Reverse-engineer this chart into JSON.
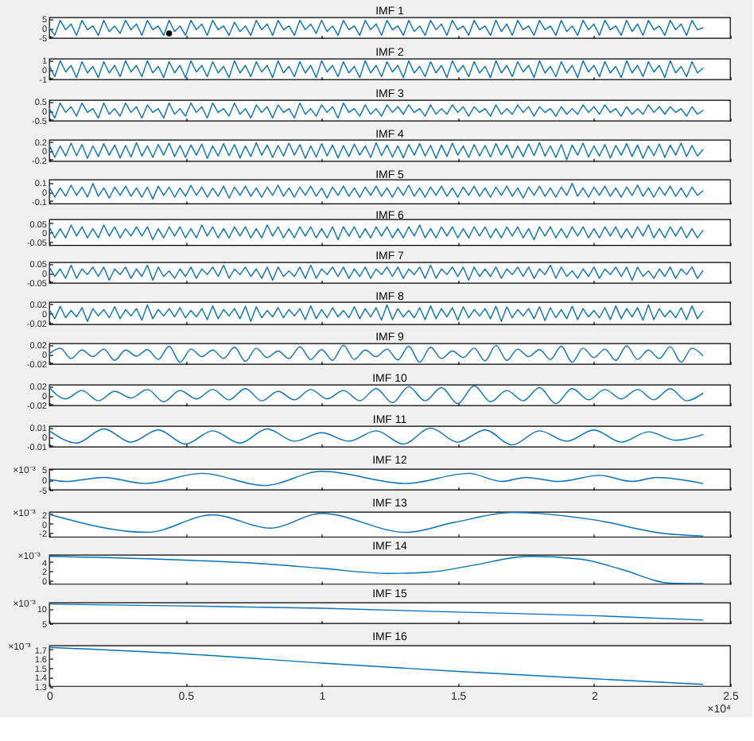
{
  "chart_data": [
    {
      "type": "line",
      "title": "IMF 1",
      "tick_labels": "y",
      "xlim": [
        0,
        2.5
      ],
      "xticks": [
        0,
        0.5,
        1,
        1.5,
        2,
        2.5
      ],
      "ylim": [
        -5.5,
        5.5
      ],
      "yticks": [
        -5,
        0,
        5
      ],
      "x": [
        0,
        0.02,
        0.04,
        0.06,
        0.08,
        0.1,
        0.12,
        0.14,
        0.16,
        0.18,
        0.2,
        0.22,
        0.24,
        0.26,
        0.28,
        0.3,
        0.32,
        0.34,
        0.36,
        0.38,
        0.4,
        0.42,
        0.44,
        0.46,
        0.48,
        0.5,
        0.52,
        0.54,
        0.56,
        0.58,
        0.6,
        0.62,
        0.64,
        0.66,
        0.68,
        0.7,
        0.72,
        0.74,
        0.76,
        0.78,
        0.8,
        0.82,
        0.84,
        0.86,
        0.88,
        0.9,
        0.92,
        0.94,
        0.96,
        0.98,
        1,
        1.02,
        1.04,
        1.06,
        1.08,
        1.1,
        1.12,
        1.14,
        1.16,
        1.18,
        1.2,
        1.22,
        1.24,
        1.26,
        1.28,
        1.3,
        1.32,
        1.34,
        1.36,
        1.38,
        1.4,
        1.42,
        1.44,
        1.46,
        1.48,
        1.5,
        1.52,
        1.54,
        1.56,
        1.58,
        1.6,
        1.62,
        1.64,
        1.66,
        1.68,
        1.7,
        1.72,
        1.74,
        1.76,
        1.78,
        1.8,
        1.82,
        1.84,
        1.86,
        1.88,
        1.9,
        1.92,
        1.94,
        1.96,
        1.98,
        2,
        2.02,
        2.04,
        2.06,
        2.08,
        2.1,
        2.12,
        2.14,
        2.16,
        2.18,
        2.2,
        2.22,
        2.24,
        2.26,
        2.28,
        2.3,
        2.32,
        2.34,
        2.36,
        2.38,
        2.4
      ],
      "series": [
        {
          "color": "#0072bd",
          "values": [
            0,
            -4,
            4,
            -1,
            2,
            -4,
            4,
            -1,
            1,
            -4,
            4,
            -2,
            1,
            -3,
            4,
            -1,
            2,
            -4,
            4,
            -1,
            1,
            -4,
            4,
            -2,
            1,
            -4,
            4,
            -1,
            2,
            -4,
            4,
            -1,
            1,
            -4,
            3,
            -2,
            1,
            -4,
            4,
            -1,
            2,
            -4,
            4,
            -1,
            1,
            -4,
            4,
            -1,
            2,
            -3,
            4,
            -2,
            1,
            -4,
            4,
            -1,
            1,
            -4,
            4,
            -1,
            2,
            -4,
            4,
            -1,
            1,
            -4,
            4,
            -2,
            1,
            -4,
            4,
            -1,
            2,
            -4,
            4,
            -1,
            1,
            -4,
            4,
            -1,
            1,
            -4,
            4,
            -2,
            2,
            -4,
            4,
            -1,
            1,
            -4,
            4,
            -1,
            1,
            -4,
            4,
            -2,
            1,
            -4,
            4,
            -1,
            2,
            -4,
            4,
            -1,
            1,
            -4,
            4,
            -2,
            2,
            -4,
            4,
            -1,
            1,
            -4,
            4,
            -1,
            2,
            -4,
            4,
            -1,
            0
          ]
        },
        {
          "type": "scatter",
          "color": "#000000",
          "x": [
            0.44
          ],
          "values": [
            -3
          ]
        }
      ]
    },
    {
      "type": "line",
      "title": "IMF 2",
      "tick_labels": "y",
      "xlim": [
        0,
        2.5
      ],
      "xticks": [
        0,
        0.5,
        1,
        1.5,
        2,
        2.5
      ],
      "ylim": [
        -1.1,
        1.1
      ],
      "yticks": [
        -1,
        0,
        1
      ],
      "color": "#0072bd",
      "x": [
        0,
        0.02,
        0.04,
        0.06,
        0.08,
        0.1,
        0.12,
        0.14,
        0.16,
        0.18,
        0.2,
        0.22,
        0.24,
        0.26,
        0.28,
        0.3,
        0.32,
        0.34,
        0.36,
        0.38,
        0.4,
        0.42,
        0.44,
        0.46,
        0.48,
        0.5,
        0.52,
        0.54,
        0.56,
        0.58,
        0.6,
        0.62,
        0.64,
        0.66,
        0.68,
        0.7,
        0.72,
        0.74,
        0.76,
        0.78,
        0.8,
        0.82,
        0.84,
        0.86,
        0.88,
        0.9,
        0.92,
        0.94,
        0.96,
        0.98,
        1,
        1.02,
        1.04,
        1.06,
        1.08,
        1.1,
        1.12,
        1.14,
        1.16,
        1.18,
        1.2,
        1.22,
        1.24,
        1.26,
        1.28,
        1.3,
        1.32,
        1.34,
        1.36,
        1.38,
        1.4,
        1.42,
        1.44,
        1.46,
        1.48,
        1.5,
        1.52,
        1.54,
        1.56,
        1.58,
        1.6,
        1.62,
        1.64,
        1.66,
        1.68,
        1.7,
        1.72,
        1.74,
        1.76,
        1.78,
        1.8,
        1.82,
        1.84,
        1.86,
        1.88,
        1.9,
        1.92,
        1.94,
        1.96,
        1.98,
        2,
        2.02,
        2.04,
        2.06,
        2.08,
        2.1,
        2.12,
        2.14,
        2.16,
        2.18,
        2.2,
        2.22,
        2.24,
        2.26,
        2.28,
        2.3,
        2.32,
        2.34,
        2.36,
        2.38,
        2.4
      ],
      "values": [
        0.4,
        -0.8,
        0.9,
        -0.3,
        0.4,
        -0.9,
        0.8,
        -0.4,
        0.3,
        -0.9,
        0.8,
        -0.4,
        0.4,
        -0.8,
        0.9,
        -0.3,
        0.4,
        -0.8,
        0.9,
        -0.4,
        0.3,
        -0.9,
        0.8,
        -0.4,
        0.4,
        -0.9,
        0.9,
        -0.3,
        0.4,
        -0.8,
        0.8,
        -0.4,
        0.3,
        -0.9,
        0.9,
        -0.4,
        0.4,
        -0.8,
        0.8,
        -0.3,
        0.4,
        -0.9,
        0.9,
        -0.4,
        0.3,
        -0.8,
        0.8,
        -0.4,
        0.4,
        -0.9,
        0.9,
        -0.3,
        0.4,
        -0.8,
        0.8,
        -0.4,
        0.3,
        -0.9,
        0.9,
        -0.4,
        0.4,
        -0.8,
        0.8,
        -0.3,
        0.4,
        -0.9,
        0.9,
        -0.4,
        0.3,
        -0.8,
        0.8,
        -0.4,
        0.4,
        -0.9,
        0.9,
        -0.3,
        0.4,
        -0.8,
        0.8,
        -0.4,
        0.3,
        -0.9,
        0.9,
        -0.4,
        0.4,
        -0.8,
        0.8,
        -0.3,
        0.4,
        -0.9,
        0.9,
        -0.4,
        0.3,
        -0.8,
        0.8,
        -0.4,
        0.4,
        -0.9,
        0.9,
        -0.3,
        0.4,
        -0.8,
        0.8,
        -0.4,
        0.3,
        -0.9,
        0.9,
        -0.4,
        0.4,
        -0.8,
        0.8,
        -0.3,
        0.4,
        -0.9,
        0.9,
        -0.4,
        0.3,
        -0.8,
        0.8,
        -0.4,
        0.1
      ]
    },
    {
      "type": "line",
      "title": "IMF 3",
      "tick_labels": "y",
      "xlim": [
        0,
        2.5
      ],
      "xticks": [
        0,
        0.5,
        1,
        1.5,
        2,
        2.5
      ],
      "ylim": [
        -0.55,
        0.55
      ],
      "yticks": [
        -0.5,
        0,
        0.5
      ],
      "color": "#0072bd",
      "x": [
        0,
        0.02,
        0.04,
        0.06,
        0.08,
        0.1,
        0.12,
        0.14,
        0.16,
        0.18,
        0.2,
        0.22,
        0.24,
        0.26,
        0.28,
        0.3,
        0.32,
        0.34,
        0.36,
        0.38,
        0.4,
        0.42,
        0.44,
        0.46,
        0.48,
        0.5,
        0.52,
        0.54,
        0.56,
        0.58,
        0.6,
        0.62,
        0.64,
        0.66,
        0.68,
        0.7,
        0.72,
        0.74,
        0.76,
        0.78,
        0.8,
        0.82,
        0.84,
        0.86,
        0.88,
        0.9,
        0.92,
        0.94,
        0.96,
        0.98,
        1,
        1.02,
        1.04,
        1.06,
        1.08,
        1.1,
        1.12,
        1.14,
        1.16,
        1.18,
        1.2,
        1.22,
        1.24,
        1.26,
        1.28,
        1.3,
        1.32,
        1.34,
        1.36,
        1.38,
        1.4,
        1.42,
        1.44,
        1.46,
        1.48,
        1.5,
        1.52,
        1.54,
        1.56,
        1.58,
        1.6,
        1.62,
        1.64,
        1.66,
        1.68,
        1.7,
        1.72,
        1.74,
        1.76,
        1.78,
        1.8,
        1.82,
        1.84,
        1.86,
        1.88,
        1.9,
        1.92,
        1.94,
        1.96,
        1.98,
        2,
        2.02,
        2.04,
        2.06,
        2.08,
        2.1,
        2.12,
        2.14,
        2.16,
        2.18,
        2.2,
        2.22,
        2.24,
        2.26,
        2.28,
        2.3,
        2.32,
        2.34,
        2.36,
        2.38,
        2.4
      ],
      "values": [
        0.1,
        -0.4,
        0.4,
        -0.1,
        0.2,
        -0.3,
        0.4,
        -0.1,
        0.1,
        -0.4,
        0.4,
        -0.2,
        0.1,
        -0.3,
        0.4,
        -0.1,
        0.2,
        -0.4,
        0.3,
        -0.1,
        0.1,
        -0.4,
        0.4,
        -0.2,
        0.1,
        -0.3,
        0.4,
        -0.1,
        0.2,
        -0.4,
        0.4,
        -0.1,
        0.1,
        -0.3,
        0.4,
        -0.2,
        0.1,
        -0.4,
        0.3,
        -0.1,
        0.2,
        -0.4,
        0.3,
        -0.1,
        0.1,
        -0.4,
        0.4,
        -0.2,
        0.1,
        -0.3,
        0.3,
        -0.1,
        0.2,
        -0.4,
        0.4,
        -0.1,
        0.1,
        -0.3,
        0.3,
        -0.2,
        0.1,
        -0.3,
        0.3,
        -0.1,
        0.2,
        -0.2,
        0.3,
        -0.1,
        0.1,
        -0.3,
        0.3,
        -0.2,
        0.1,
        -0.2,
        0.3,
        -0.1,
        0.2,
        -0.3,
        0.2,
        -0.1,
        0.1,
        -0.3,
        0.3,
        -0.2,
        0.1,
        -0.2,
        0.3,
        -0.1,
        0.2,
        -0.3,
        0.2,
        -0.1,
        0.1,
        -0.3,
        0.2,
        -0.2,
        0.1,
        -0.2,
        0.3,
        -0.1,
        0.2,
        -0.2,
        0.3,
        -0.1,
        0.1,
        -0.3,
        0.2,
        -0.2,
        0.1,
        -0.2,
        0.3,
        -0.1,
        0.2,
        -0.2,
        0.2,
        -0.1,
        0.1,
        -0.3,
        0.2,
        -0.2,
        0
      ]
    },
    {
      "type": "line",
      "title": "IMF 4",
      "tick_labels": "y",
      "xlim": [
        0,
        2.5
      ],
      "xticks": [
        0,
        0.5,
        1,
        1.5,
        2,
        2.5
      ],
      "ylim": [
        -0.23,
        0.23
      ],
      "yticks": [
        -0.2,
        0,
        0.2
      ],
      "color": "#0072bd",
      "x": [
        0,
        0.02,
        0.04,
        0.06,
        0.08,
        0.1,
        0.12,
        0.14,
        0.16,
        0.18,
        0.2,
        0.22,
        0.24,
        0.26,
        0.28,
        0.3,
        0.32,
        0.34,
        0.36,
        0.38,
        0.4,
        0.42,
        0.44,
        0.46,
        0.48,
        0.5,
        0.52,
        0.54,
        0.56,
        0.58,
        0.6,
        0.62,
        0.64,
        0.66,
        0.68,
        0.7,
        0.72,
        0.74,
        0.76,
        0.78,
        0.8,
        0.82,
        0.84,
        0.86,
        0.88,
        0.9,
        0.92,
        0.94,
        0.96,
        0.98,
        1,
        1.02,
        1.04,
        1.06,
        1.08,
        1.1,
        1.12,
        1.14,
        1.16,
        1.18,
        1.2,
        1.22,
        1.24,
        1.26,
        1.28,
        1.3,
        1.32,
        1.34,
        1.36,
        1.38,
        1.4,
        1.42,
        1.44,
        1.46,
        1.48,
        1.5,
        1.52,
        1.54,
        1.56,
        1.58,
        1.6,
        1.62,
        1.64,
        1.66,
        1.68,
        1.7,
        1.72,
        1.74,
        1.76,
        1.78,
        1.8,
        1.82,
        1.84,
        1.86,
        1.88,
        1.9,
        1.92,
        1.94,
        1.96,
        1.98,
        2,
        2.02,
        2.04,
        2.06,
        2.08,
        2.1,
        2.12,
        2.14,
        2.16,
        2.18,
        2.2,
        2.22,
        2.24,
        2.26,
        2.28,
        2.3,
        2.32,
        2.34,
        2.36,
        2.38,
        2.4
      ],
      "values": [
        0.12,
        -0.15,
        0.1,
        -0.12,
        0.16,
        -0.11,
        0.13,
        -0.17,
        0.1,
        -0.13,
        0.15,
        -0.1,
        0.12,
        -0.16,
        0.11,
        -0.14,
        0.17,
        -0.12,
        0.1,
        -0.15,
        0.13,
        -0.1,
        0.16,
        -0.13,
        0.11,
        -0.15,
        0.12,
        -0.1,
        0.14,
        -0.17,
        0.1,
        -0.12,
        0.15,
        -0.11,
        0.13,
        -0.16,
        0.1,
        -0.13,
        0.17,
        -0.1,
        0.12,
        -0.15,
        0.11,
        -0.12,
        0.16,
        -0.1,
        0.13,
        -0.17,
        0.1,
        -0.14,
        0.15,
        -0.12,
        0.12,
        -0.16,
        0.11,
        -0.13,
        0.14,
        -0.1,
        0.1,
        -0.15,
        0.17,
        -0.11,
        0.12,
        -0.14,
        0.1,
        -0.16,
        0.13,
        -0.1,
        0.15,
        -0.12,
        0.11,
        -0.17,
        0.12,
        -0.13,
        0.16,
        -0.1,
        0.1,
        -0.15,
        0.13,
        -0.12,
        0.11,
        -0.14,
        0.15,
        -0.1,
        0.12,
        -0.16,
        0.1,
        -0.13,
        0.14,
        -0.11,
        0.17,
        -0.12,
        0.1,
        -0.15,
        0.13,
        -0.2,
        0.12,
        -0.1,
        0.16,
        -0.14,
        0.1,
        -0.12,
        0.13,
        -0.16,
        0.11,
        -0.1,
        0.15,
        -0.13,
        0.12,
        -0.17,
        0.1,
        -0.11,
        0.14,
        -0.15,
        0.12,
        -0.1,
        0.16,
        -0.13,
        0.11,
        -0.12,
        0.02
      ]
    },
    {
      "type": "line",
      "title": "IMF 5",
      "tick_labels": "y",
      "xlim": [
        0,
        2.5
      ],
      "xticks": [
        0,
        0.5,
        1,
        1.5,
        2,
        2.5
      ],
      "ylim": [
        -0.13,
        0.13
      ],
      "yticks": [
        -0.1,
        0,
        0.1
      ],
      "color": "#0072bd",
      "x": [
        0,
        0.02,
        0.04,
        0.06,
        0.08,
        0.1,
        0.12,
        0.14,
        0.16,
        0.18,
        0.2,
        0.22,
        0.24,
        0.26,
        0.28,
        0.3,
        0.32,
        0.34,
        0.36,
        0.38,
        0.4,
        0.42,
        0.44,
        0.46,
        0.48,
        0.5,
        0.52,
        0.54,
        0.56,
        0.58,
        0.6,
        0.62,
        0.64,
        0.66,
        0.68,
        0.7,
        0.72,
        0.74,
        0.76,
        0.78,
        0.8,
        0.82,
        0.84,
        0.86,
        0.88,
        0.9,
        0.92,
        0.94,
        0.96,
        0.98,
        1,
        1.02,
        1.04,
        1.06,
        1.08,
        1.1,
        1.12,
        1.14,
        1.16,
        1.18,
        1.2,
        1.22,
        1.24,
        1.26,
        1.28,
        1.3,
        1.32,
        1.34,
        1.36,
        1.38,
        1.4,
        1.42,
        1.44,
        1.46,
        1.48,
        1.5,
        1.52,
        1.54,
        1.56,
        1.58,
        1.6,
        1.62,
        1.64,
        1.66,
        1.68,
        1.7,
        1.72,
        1.74,
        1.76,
        1.78,
        1.8,
        1.82,
        1.84,
        1.86,
        1.88,
        1.9,
        1.92,
        1.94,
        1.96,
        1.98,
        2,
        2.02,
        2.04,
        2.06,
        2.08,
        2.1,
        2.12,
        2.14,
        2.16,
        2.18,
        2.2,
        2.22,
        2.24,
        2.26,
        2.28,
        2.3,
        2.32,
        2.34,
        2.36,
        2.38,
        2.4
      ],
      "values": [
        0.05,
        -0.06,
        0.04,
        -0.05,
        0.07,
        -0.04,
        0.05,
        -0.06,
        0.09,
        -0.05,
        0.04,
        -0.07,
        0.05,
        -0.04,
        0.06,
        -0.05,
        0.04,
        -0.06,
        0.05,
        -0.08,
        0.06,
        -0.04,
        0.05,
        -0.06,
        0.04,
        -0.05,
        0.07,
        -0.04,
        0.05,
        -0.06,
        0.04,
        -0.05,
        0.06,
        -0.07,
        0.05,
        -0.04,
        0.06,
        -0.05,
        0.04,
        -0.06,
        0.05,
        -0.04,
        0.07,
        -0.05,
        0.04,
        -0.06,
        0.05,
        -0.04,
        0.06,
        -0.05,
        0.04,
        -0.07,
        0.05,
        -0.04,
        0.06,
        -0.05,
        0.04,
        -0.06,
        0.05,
        -0.04,
        0.06,
        -0.05,
        0.04,
        -0.06,
        0.05,
        -0.04,
        0.07,
        -0.05,
        0.04,
        -0.06,
        0.05,
        -0.04,
        0.06,
        -0.05,
        0.04,
        -0.06,
        0.05,
        -0.04,
        0.06,
        -0.05,
        0.04,
        -0.06,
        0.05,
        -0.04,
        0.06,
        -0.05,
        0.04,
        -0.07,
        0.05,
        -0.04,
        0.06,
        -0.05,
        0.04,
        -0.06,
        0.05,
        -0.04,
        0.09,
        -0.05,
        0.04,
        -0.06,
        0.05,
        -0.04,
        0.06,
        -0.05,
        0.04,
        -0.06,
        0.05,
        -0.04,
        0.07,
        -0.05,
        0.04,
        -0.06,
        0.05,
        -0.04,
        0.06,
        -0.05,
        0.04,
        -0.06,
        0.05,
        -0.04,
        0.01
      ]
    },
    {
      "type": "line",
      "title": "IMF 6",
      "tick_labels": "y",
      "xlim": [
        0,
        2.5
      ],
      "xticks": [
        0,
        0.5,
        1,
        1.5,
        2,
        2.5
      ],
      "ylim": [
        -0.07,
        0.07
      ],
      "yticks": [
        -0.05,
        0,
        0.05
      ],
      "color": "#0072bd",
      "x": [
        0,
        0.02,
        0.04,
        0.06,
        0.08,
        0.1,
        0.12,
        0.14,
        0.16,
        0.18,
        0.2,
        0.22,
        0.24,
        0.26,
        0.28,
        0.3,
        0.32,
        0.34,
        0.36,
        0.38,
        0.4,
        0.42,
        0.44,
        0.46,
        0.48,
        0.5,
        0.52,
        0.54,
        0.56,
        0.58,
        0.6,
        0.62,
        0.64,
        0.66,
        0.68,
        0.7,
        0.72,
        0.74,
        0.76,
        0.78,
        0.8,
        0.82,
        0.84,
        0.86,
        0.88,
        0.9,
        0.92,
        0.94,
        0.96,
        0.98,
        1,
        1.02,
        1.04,
        1.06,
        1.08,
        1.1,
        1.12,
        1.14,
        1.16,
        1.18,
        1.2,
        1.22,
        1.24,
        1.26,
        1.28,
        1.3,
        1.32,
        1.34,
        1.36,
        1.38,
        1.4,
        1.42,
        1.44,
        1.46,
        1.48,
        1.5,
        1.52,
        1.54,
        1.56,
        1.58,
        1.6,
        1.62,
        1.64,
        1.66,
        1.68,
        1.7,
        1.72,
        1.74,
        1.76,
        1.78,
        1.8,
        1.82,
        1.84,
        1.86,
        1.88,
        1.9,
        1.92,
        1.94,
        1.96,
        1.98,
        2,
        2.02,
        2.04,
        2.06,
        2.08,
        2.1,
        2.12,
        2.14,
        2.16,
        2.18,
        2.2,
        2.22,
        2.24,
        2.26,
        2.28,
        2.3,
        2.32,
        2.34,
        2.36,
        2.38,
        2.4
      ],
      "values": [
        0.03,
        -0.03,
        0.02,
        -0.03,
        0.04,
        -0.02,
        0.03,
        -0.03,
        0.02,
        -0.03,
        0.04,
        -0.02,
        0.03,
        -0.03,
        0.02,
        -0.02,
        0.03,
        -0.02,
        0.03,
        -0.04,
        0.02,
        -0.03,
        0.03,
        -0.02,
        0.03,
        -0.03,
        0.02,
        -0.03,
        0.04,
        -0.02,
        0.03,
        -0.03,
        0.02,
        -0.03,
        0.03,
        -0.02,
        0.03,
        -0.03,
        0.02,
        -0.03,
        0.04,
        -0.02,
        0.03,
        -0.03,
        0.02,
        -0.03,
        0.03,
        -0.02,
        0.03,
        -0.03,
        0.02,
        -0.03,
        0.03,
        -0.04,
        0.03,
        -0.02,
        0.03,
        -0.03,
        0.02,
        -0.03,
        0.03,
        -0.02,
        0.03,
        -0.03,
        0.02,
        -0.03,
        0.03,
        -0.02,
        0.04,
        -0.03,
        0.02,
        -0.03,
        0.03,
        -0.02,
        0.03,
        -0.03,
        0.02,
        -0.03,
        0.03,
        -0.02,
        0.03,
        -0.03,
        0.02,
        -0.03,
        0.03,
        -0.02,
        0.03,
        -0.03,
        0.02,
        -0.04,
        0.03,
        -0.02,
        0.03,
        -0.03,
        0.02,
        -0.03,
        0.03,
        -0.02,
        0.03,
        -0.03,
        0.02,
        -0.03,
        0.03,
        -0.02,
        0.03,
        -0.03,
        0.02,
        -0.03,
        0.03,
        -0.02,
        0.04,
        -0.03,
        0.02,
        -0.03,
        0.03,
        -0.02,
        0.03,
        -0.03,
        0.02,
        -0.03,
        0.01
      ]
    },
    {
      "type": "line",
      "title": "IMF 7",
      "tick_labels": "y",
      "xlim": [
        0,
        2.5
      ],
      "xticks": [
        0,
        0.5,
        1,
        1.5,
        2,
        2.5
      ],
      "ylim": [
        -0.055,
        0.055
      ],
      "yticks": [
        -0.05,
        0,
        0.05
      ],
      "color": "#0072bd",
      "x": [
        0,
        0.02,
        0.04,
        0.06,
        0.08,
        0.1,
        0.12,
        0.14,
        0.16,
        0.18,
        0.2,
        0.22,
        0.24,
        0.26,
        0.28,
        0.3,
        0.32,
        0.34,
        0.36,
        0.38,
        0.4,
        0.42,
        0.44,
        0.46,
        0.48,
        0.5,
        0.52,
        0.54,
        0.56,
        0.58,
        0.6,
        0.62,
        0.64,
        0.66,
        0.68,
        0.7,
        0.72,
        0.74,
        0.76,
        0.78,
        0.8,
        0.82,
        0.84,
        0.86,
        0.88,
        0.9,
        0.92,
        0.94,
        0.96,
        0.98,
        1,
        1.02,
        1.04,
        1.06,
        1.08,
        1.1,
        1.12,
        1.14,
        1.16,
        1.18,
        1.2,
        1.22,
        1.24,
        1.26,
        1.28,
        1.3,
        1.32,
        1.34,
        1.36,
        1.38,
        1.4,
        1.42,
        1.44,
        1.46,
        1.48,
        1.5,
        1.52,
        1.54,
        1.56,
        1.58,
        1.6,
        1.62,
        1.64,
        1.66,
        1.68,
        1.7,
        1.72,
        1.74,
        1.76,
        1.78,
        1.8,
        1.82,
        1.84,
        1.86,
        1.88,
        1.9,
        1.92,
        1.94,
        1.96,
        1.98,
        2,
        2.02,
        2.04,
        2.06,
        2.08,
        2.1,
        2.12,
        2.14,
        2.16,
        2.18,
        2.2,
        2.22,
        2.24,
        2.26,
        2.28,
        2.3,
        2.32,
        2.34,
        2.36,
        2.38,
        2.4
      ],
      "values": [
        0.03,
        -0.02,
        0.02,
        -0.03,
        0.04,
        -0.03,
        0.02,
        -0.01,
        0.03,
        -0.02,
        0.03,
        -0.04,
        0.02,
        -0.01,
        0.03,
        -0.03,
        0.02,
        -0.02,
        0.04,
        -0.04,
        0.03,
        -0.02,
        0.01,
        -0.03,
        0.02,
        -0.02,
        0.03,
        -0.03,
        0.02,
        -0.01,
        0.03,
        -0.02,
        0.04,
        -0.03,
        0.02,
        -0.01,
        0.03,
        -0.02,
        0.02,
        -0.03,
        0.03,
        -0.04,
        0.03,
        -0.02,
        0.01,
        -0.02,
        0.03,
        -0.03,
        0.04,
        -0.03,
        0.02,
        -0.01,
        0.03,
        -0.02,
        0.03,
        -0.03,
        0.02,
        -0.02,
        0.03,
        -0.03,
        0.02,
        -0.01,
        0.03,
        -0.02,
        0.03,
        -0.03,
        0.02,
        -0.01,
        0.03,
        -0.03,
        0.04,
        -0.03,
        0.02,
        -0.01,
        0.03,
        -0.02,
        0.03,
        -0.04,
        0.03,
        -0.02,
        0.02,
        -0.02,
        0.03,
        -0.03,
        0.02,
        -0.01,
        0.03,
        -0.02,
        0.03,
        -0.03,
        0.02,
        -0.01,
        0.04,
        -0.03,
        0.03,
        -0.02,
        0.01,
        -0.03,
        0.02,
        -0.02,
        0.03,
        -0.03,
        0.02,
        -0.01,
        0.03,
        -0.02,
        0.03,
        -0.04,
        0.03,
        -0.02,
        0.01,
        -0.03,
        0.02,
        -0.02,
        0.03,
        -0.03,
        0.02,
        -0.01,
        0.03,
        -0.03,
        0.01
      ]
    },
    {
      "type": "line",
      "title": "IMF 8",
      "tick_labels": "y",
      "xlim": [
        0,
        2.5
      ],
      "xticks": [
        0,
        0.5,
        1,
        1.5,
        2,
        2.5
      ],
      "ylim": [
        -0.024,
        0.024
      ],
      "yticks": [
        -0.02,
        0,
        0.02
      ],
      "color": "#0072bd",
      "x": [
        0,
        0.02,
        0.04,
        0.06,
        0.08,
        0.1,
        0.12,
        0.14,
        0.16,
        0.18,
        0.2,
        0.22,
        0.24,
        0.26,
        0.28,
        0.3,
        0.32,
        0.34,
        0.36,
        0.38,
        0.4,
        0.42,
        0.44,
        0.46,
        0.48,
        0.5,
        0.52,
        0.54,
        0.56,
        0.58,
        0.6,
        0.62,
        0.64,
        0.66,
        0.68,
        0.7,
        0.72,
        0.74,
        0.76,
        0.78,
        0.8,
        0.82,
        0.84,
        0.86,
        0.88,
        0.9,
        0.92,
        0.94,
        0.96,
        0.98,
        1,
        1.02,
        1.04,
        1.06,
        1.08,
        1.1,
        1.12,
        1.14,
        1.16,
        1.18,
        1.2,
        1.22,
        1.24,
        1.26,
        1.28,
        1.3,
        1.32,
        1.34,
        1.36,
        1.38,
        1.4,
        1.42,
        1.44,
        1.46,
        1.48,
        1.5,
        1.52,
        1.54,
        1.56,
        1.58,
        1.6,
        1.62,
        1.64,
        1.66,
        1.68,
        1.7,
        1.72,
        1.74,
        1.76,
        1.78,
        1.8,
        1.82,
        1.84,
        1.86,
        1.88,
        1.9,
        1.92,
        1.94,
        1.96,
        1.98,
        2,
        2.02,
        2.04,
        2.06,
        2.08,
        2.1,
        2.12,
        2.14,
        2.16,
        2.18,
        2.2,
        2.22,
        2.24,
        2.26,
        2.28,
        2.3,
        2.32,
        2.34,
        2.36,
        2.38,
        2.4
      ],
      "values": [
        0.008,
        -0.012,
        0.015,
        -0.01,
        0.006,
        -0.008,
        0.012,
        -0.018,
        0.01,
        -0.006,
        0.008,
        -0.01,
        0.014,
        -0.012,
        0.008,
        -0.006,
        0.01,
        -0.015,
        0.018,
        -0.012,
        0.008,
        -0.006,
        0.01,
        -0.008,
        0.012,
        -0.01,
        0.006,
        -0.008,
        0.01,
        -0.014,
        0.016,
        -0.012,
        0.008,
        -0.006,
        0.01,
        -0.012,
        0.015,
        -0.018,
        0.014,
        -0.01,
        0.006,
        -0.008,
        0.012,
        -0.01,
        0.008,
        -0.006,
        0.01,
        -0.014,
        0.016,
        -0.012,
        0.008,
        -0.01,
        0.012,
        -0.008,
        0.006,
        -0.01,
        0.014,
        -0.012,
        0.01,
        -0.008,
        0.012,
        -0.015,
        0.018,
        -0.014,
        0.01,
        -0.008,
        0.006,
        -0.01,
        0.012,
        -0.014,
        0.016,
        -0.012,
        0.01,
        -0.008,
        0.012,
        -0.015,
        0.014,
        -0.01,
        0.008,
        -0.006,
        0.01,
        -0.012,
        0.015,
        -0.018,
        0.014,
        -0.01,
        0.008,
        -0.006,
        0.01,
        -0.012,
        0.014,
        -0.016,
        0.012,
        -0.01,
        0.008,
        -0.012,
        0.015,
        -0.014,
        0.01,
        -0.008,
        0.006,
        -0.01,
        0.012,
        -0.014,
        0.016,
        -0.012,
        0.01,
        -0.008,
        0.012,
        -0.015,
        0.018,
        -0.014,
        0.01,
        -0.008,
        0.006,
        -0.01,
        0.012,
        -0.014,
        0.016,
        -0.012,
        0.004
      ]
    },
    {
      "type": "line",
      "title": "IMF 9",
      "tick_labels": "y",
      "xlim": [
        0,
        2.5
      ],
      "xticks": [
        0,
        0.5,
        1,
        1.5,
        2,
        2.5
      ],
      "ylim": [
        -0.022,
        0.022
      ],
      "yticks": [
        -0.02,
        0,
        0.02
      ],
      "color": "#0072bd",
      "x": [
        0,
        0.04,
        0.08,
        0.12,
        0.16,
        0.2,
        0.24,
        0.28,
        0.32,
        0.36,
        0.4,
        0.44,
        0.48,
        0.52,
        0.56,
        0.6,
        0.64,
        0.68,
        0.72,
        0.76,
        0.8,
        0.84,
        0.88,
        0.92,
        0.96,
        1,
        1.04,
        1.08,
        1.12,
        1.16,
        1.2,
        1.24,
        1.28,
        1.32,
        1.36,
        1.4,
        1.44,
        1.48,
        1.52,
        1.56,
        1.6,
        1.64,
        1.68,
        1.72,
        1.76,
        1.8,
        1.84,
        1.88,
        1.92,
        1.96,
        2,
        2.04,
        2.08,
        2.12,
        2.16,
        2.2,
        2.24,
        2.28,
        2.32,
        2.36,
        2.4
      ],
      "values": [
        0,
        0.012,
        -0.01,
        0.008,
        -0.006,
        0.01,
        -0.014,
        0.008,
        -0.005,
        0.009,
        -0.012,
        0.016,
        -0.018,
        0.01,
        -0.006,
        0.008,
        -0.01,
        0.014,
        -0.016,
        0.012,
        -0.008,
        0.006,
        -0.01,
        0.015,
        -0.012,
        0.009,
        -0.014,
        0.018,
        -0.012,
        0.008,
        -0.006,
        0.01,
        -0.013,
        0.016,
        -0.018,
        0.014,
        -0.01,
        0.006,
        -0.008,
        0.012,
        -0.015,
        0.018,
        -0.014,
        0.01,
        -0.006,
        0.009,
        -0.012,
        0.016,
        -0.018,
        0.012,
        -0.008,
        0.01,
        -0.014,
        0.017,
        -0.012,
        0.008,
        -0.01,
        0.015,
        -0.018,
        0.012,
        -0.004
      ]
    },
    {
      "type": "line",
      "title": "IMF 10",
      "tick_labels": "y",
      "xlim": [
        0,
        2.5
      ],
      "xticks": [
        0,
        0.5,
        1,
        1.5,
        2,
        2.5
      ],
      "ylim": [
        -0.022,
        0.022
      ],
      "yticks": [
        -0.02,
        0,
        0.02
      ],
      "color": "#0072bd",
      "x": [
        0,
        0.06,
        0.12,
        0.18,
        0.24,
        0.3,
        0.36,
        0.42,
        0.48,
        0.54,
        0.6,
        0.66,
        0.72,
        0.78,
        0.84,
        0.9,
        0.96,
        1.02,
        1.08,
        1.14,
        1.2,
        1.26,
        1.32,
        1.38,
        1.44,
        1.5,
        1.56,
        1.62,
        1.68,
        1.74,
        1.8,
        1.86,
        1.92,
        1.98,
        2.04,
        2.1,
        2.16,
        2.22,
        2.28,
        2.34,
        2.4
      ],
      "values": [
        0.016,
        -0.008,
        0.01,
        -0.012,
        0.008,
        -0.006,
        0.012,
        -0.014,
        0.01,
        -0.008,
        0.012,
        -0.01,
        0.014,
        -0.012,
        0.008,
        -0.01,
        0.012,
        -0.008,
        0.01,
        -0.012,
        0.014,
        -0.016,
        0.018,
        -0.012,
        0.016,
        -0.018,
        0.02,
        -0.014,
        0.01,
        -0.012,
        0.016,
        -0.018,
        0.014,
        -0.01,
        0.012,
        -0.008,
        0.012,
        -0.01,
        0.014,
        -0.012,
        0.004
      ]
    },
    {
      "type": "line",
      "title": "IMF 11",
      "tick_labels": "y",
      "xlim": [
        0,
        2.5
      ],
      "xticks": [
        0,
        0.5,
        1,
        1.5,
        2,
        2.5
      ],
      "ylim": [
        -0.011,
        0.011
      ],
      "yticks": [
        -0.01,
        0,
        0.01
      ],
      "color": "#0072bd",
      "x": [
        0,
        0.1,
        0.2,
        0.3,
        0.4,
        0.5,
        0.6,
        0.7,
        0.8,
        0.9,
        1,
        1.1,
        1.2,
        1.3,
        1.4,
        1.5,
        1.6,
        1.7,
        1.8,
        1.9,
        2,
        2.1,
        2.2,
        2.3,
        2.4
      ],
      "values": [
        0.006,
        -0.007,
        0.008,
        -0.006,
        0.007,
        -0.008,
        0.006,
        -0.007,
        0.008,
        -0.005,
        0.004,
        -0.005,
        0.006,
        -0.008,
        0.009,
        -0.006,
        0.007,
        -0.009,
        0.006,
        -0.005,
        0.007,
        -0.006,
        0.005,
        -0.004,
        0.002
      ]
    },
    {
      "type": "line",
      "title": "IMF 12",
      "tick_labels": "y",
      "ylabel": "×10⁻³",
      "xlim": [
        0,
        2.5
      ],
      "xticks": [
        0,
        0.5,
        1,
        1.5,
        2,
        2.5
      ],
      "ylim": [
        -5.1,
        5.1
      ],
      "yticks": [
        -5,
        0,
        5
      ],
      "color": "#0072bd",
      "x": [
        0,
        0.06,
        0.2,
        0.35,
        0.56,
        0.79,
        1.0,
        1.31,
        1.54,
        1.66,
        1.75,
        1.87,
        2.02,
        2.14,
        2.23,
        2.4
      ],
      "values": [
        0,
        -1,
        1,
        -2,
        3,
        -3,
        4,
        -2,
        3,
        -1,
        1,
        -1,
        2,
        -1,
        1,
        -2
      ]
    },
    {
      "type": "line",
      "title": "IMF 13",
      "tick_labels": "y",
      "ylabel": "×10⁻³",
      "xlim": [
        0,
        2.5
      ],
      "xticks": [
        0,
        0.5,
        1,
        1.5,
        2,
        2.5
      ],
      "ylim": [
        -2.9,
        2.5
      ],
      "yticks": [
        -2,
        0,
        2
      ],
      "color": "#0072bd",
      "x": [
        0,
        0.36,
        0.6,
        0.81,
        1.0,
        1.31,
        1.49,
        1.7,
        2.0,
        2.25,
        2.4
      ],
      "values": [
        2.0,
        -1.9,
        1.9,
        -1.0,
        2.2,
        -1.9,
        0.3,
        2.4,
        0.8,
        -2.1,
        -2.7
      ]
    },
    {
      "type": "line",
      "title": "IMF 14",
      "tick_labels": "y",
      "ylabel": "×10⁻³",
      "xlim": [
        0,
        2.5
      ],
      "xticks": [
        0,
        0.5,
        1,
        1.5,
        2,
        2.5
      ],
      "ylim": [
        -0.8,
        5.5
      ],
      "yticks": [
        0,
        2,
        4
      ],
      "color": "#0072bd",
      "x": [
        0,
        0.4,
        0.78,
        1.0,
        1.24,
        1.4,
        1.55,
        1.76,
        1.95,
        2.1,
        2.28,
        2.4
      ],
      "values": [
        5.2,
        4.6,
        3.6,
        2.6,
        1.5,
        1.8,
        3.2,
        5.2,
        4.6,
        2.4,
        -0.6,
        -0.7
      ]
    },
    {
      "type": "line",
      "title": "IMF 15",
      "tick_labels": "y",
      "ylabel": "×10⁻³",
      "xlim": [
        0,
        2.5
      ],
      "xticks": [
        0,
        0.5,
        1,
        1.5,
        2,
        2.5
      ],
      "ylim": [
        5,
        12
      ],
      "yticks": [
        5,
        10
      ],
      "color": "#0072bd",
      "x": [
        0,
        0.5,
        1,
        1.5,
        2,
        2.4
      ],
      "values": [
        11.5,
        10.9,
        10.1,
        8.8,
        7.6,
        6.1
      ]
    },
    {
      "type": "line",
      "title": "IMF 16",
      "ylabel": "×10⁻³",
      "xlabel": "×10⁴",
      "xlim": [
        0,
        2.5
      ],
      "xticks": [
        0,
        0.5,
        1,
        1.5,
        2,
        2.5
      ],
      "ylim": [
        1.3,
        1.74
      ],
      "yticks": [
        1.3,
        1.4,
        1.5,
        1.6,
        1.7
      ],
      "color": "#0072bd",
      "x": [
        0,
        0.5,
        1,
        1.5,
        2,
        2.4
      ],
      "values": [
        1.72,
        1.65,
        1.55,
        1.46,
        1.38,
        1.32
      ]
    }
  ]
}
